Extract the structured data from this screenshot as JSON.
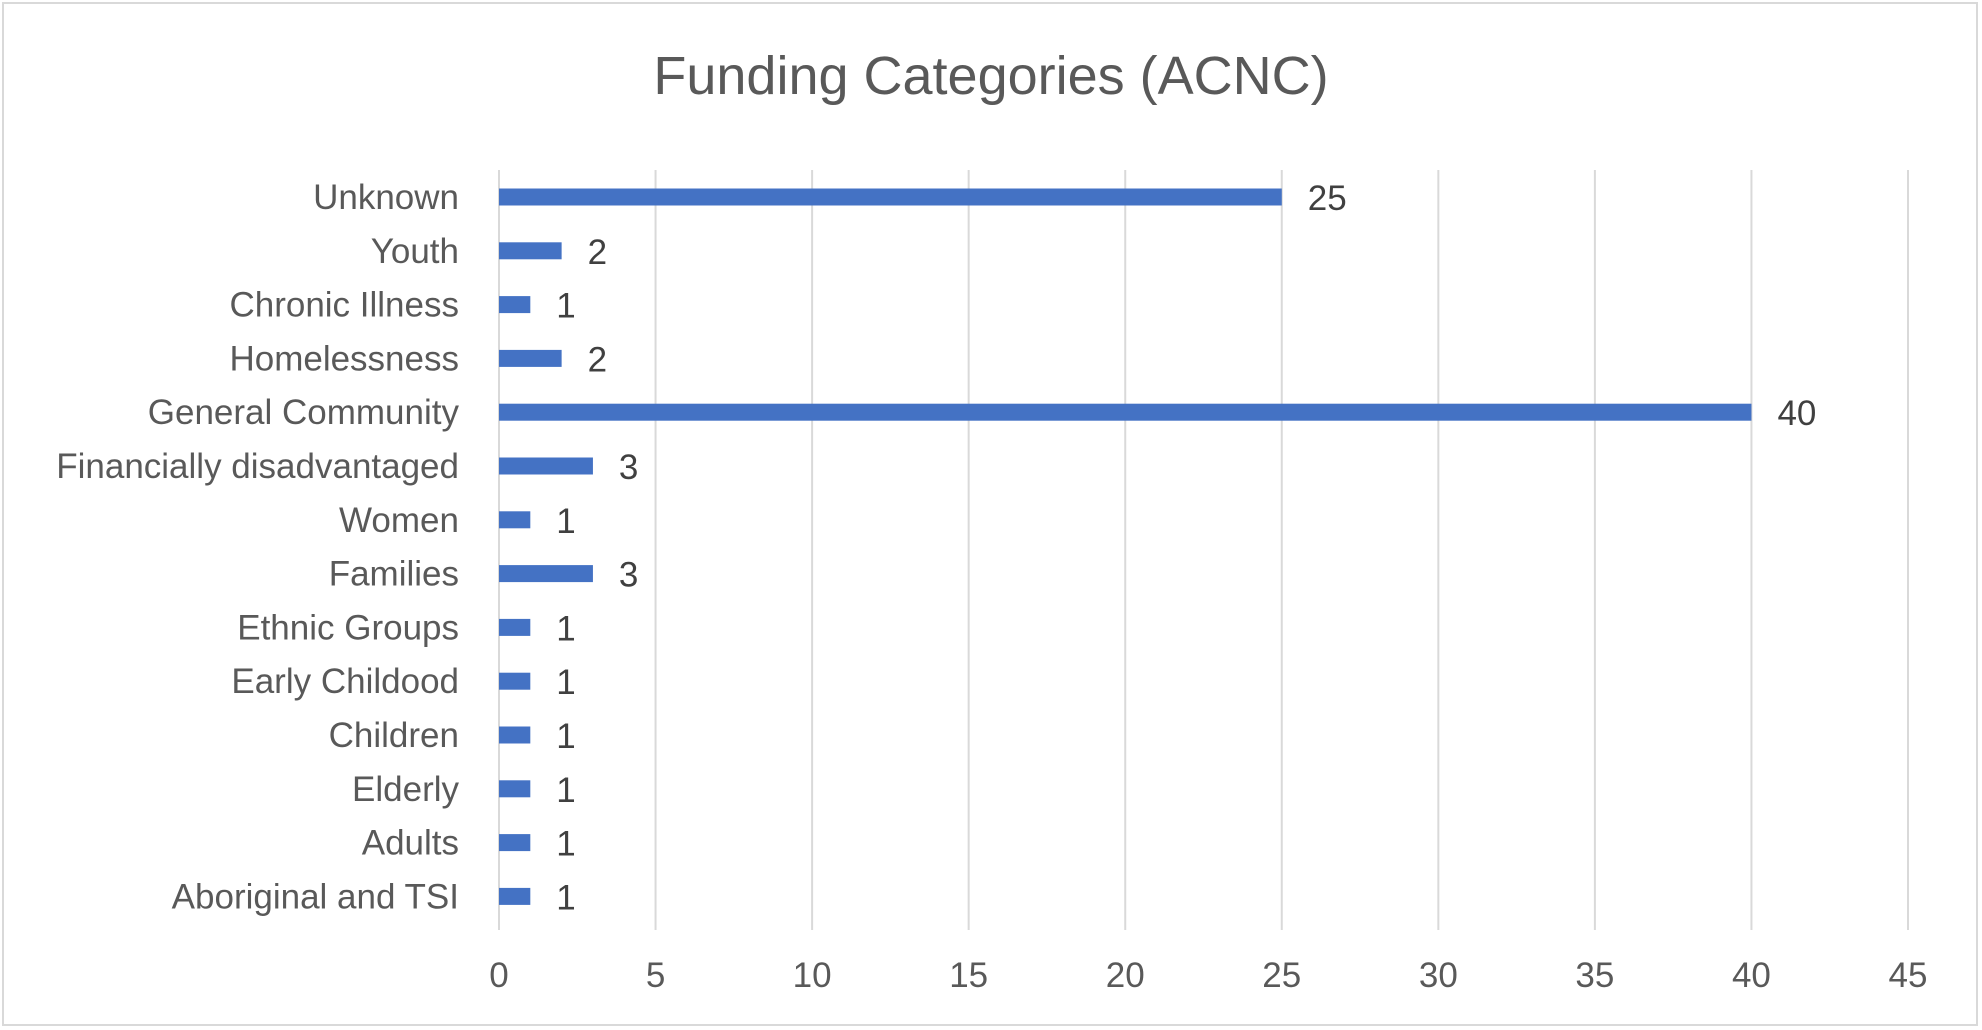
{
  "chart_data": {
    "type": "bar",
    "orientation": "horizontal",
    "title": "Funding Categories (ACNC)",
    "xlabel": "",
    "ylabel": "",
    "categories": [
      "Unknown",
      "Youth",
      "Chronic Illness",
      "Homelessness",
      "General Community",
      "Financially disadvantaged",
      "Women",
      "Families",
      "Ethnic Groups",
      "Early Childood",
      "Children",
      "Elderly",
      "Adults",
      "Aboriginal and TSI"
    ],
    "values": [
      25,
      2,
      1,
      2,
      40,
      3,
      1,
      3,
      1,
      1,
      1,
      1,
      1,
      1
    ],
    "xlim": [
      0,
      45
    ],
    "xticks": [
      0,
      5,
      10,
      15,
      20,
      25,
      30,
      35,
      40,
      45
    ],
    "grid": "vertical",
    "data_labels": true,
    "legend": "none",
    "bar_color": "#4472C4",
    "grid_color": "#d9d9d9",
    "text_color": "#595959"
  }
}
